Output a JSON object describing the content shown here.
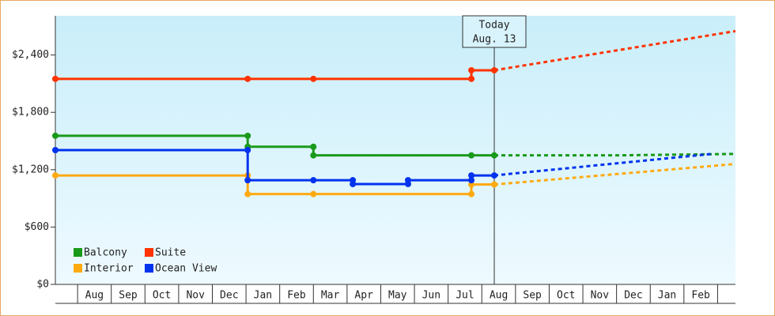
{
  "chart_data": {
    "type": "line",
    "xlim": [
      -0.66,
      19.53
    ],
    "xticks": [
      {
        "value": 0.5,
        "label": "Aug"
      },
      {
        "value": 1.5,
        "label": "Sep"
      },
      {
        "value": 2.5,
        "label": "Oct"
      },
      {
        "value": 3.5,
        "label": "Nov"
      },
      {
        "value": 4.5,
        "label": "Dec"
      },
      {
        "value": 5.5,
        "label": "Jan"
      },
      {
        "value": 6.5,
        "label": "Feb"
      },
      {
        "value": 7.5,
        "label": "Mar"
      },
      {
        "value": 8.5,
        "label": "Apr"
      },
      {
        "value": 9.5,
        "label": "May"
      },
      {
        "value": 10.5,
        "label": "Jun"
      },
      {
        "value": 11.5,
        "label": "Jul"
      },
      {
        "value": 12.5,
        "label": "Aug"
      },
      {
        "value": 13.5,
        "label": "Sep"
      },
      {
        "value": 14.5,
        "label": "Oct"
      },
      {
        "value": 15.5,
        "label": "Nov"
      },
      {
        "value": 16.5,
        "label": "Dec"
      },
      {
        "value": 17.5,
        "label": "Jan"
      },
      {
        "value": 18.5,
        "label": "Feb"
      }
    ],
    "ylim": [
      0,
      2810
    ],
    "yticks": [
      {
        "value": 0,
        "label": "$0"
      },
      {
        "value": 600,
        "label": "$600"
      },
      {
        "value": 1200,
        "label": "$1,200"
      },
      {
        "value": 1800,
        "label": "$1,800"
      },
      {
        "value": 2400,
        "label": "$2,400"
      }
    ],
    "today": {
      "x": 12.37,
      "label": "Today",
      "date": "Aug. 13"
    },
    "series": [
      {
        "name": "Balcony",
        "color": "#1a9a1a",
        "x": [
          -0.66,
          5.05,
          5.05,
          7.0,
          7.0,
          11.69,
          12.37
        ],
        "values": [
          1555,
          1555,
          1440,
          1440,
          1350,
          1350,
          1350
        ],
        "forecast": {
          "x": [
            12.37,
            16.0,
            19.53
          ],
          "values": [
            1350,
            1350,
            1365
          ]
        }
      },
      {
        "name": "Suite",
        "color": "#ff3300",
        "x": [
          -0.66,
          5.05,
          7.0,
          11.69,
          11.69,
          12.37
        ],
        "values": [
          2150,
          2150,
          2150,
          2150,
          2240,
          2240
        ],
        "forecast": {
          "x": [
            12.37,
            19.53
          ],
          "values": [
            2240,
            2650
          ]
        }
      },
      {
        "name": "Interior",
        "color": "#ffaa11",
        "x": [
          -0.66,
          5.05,
          5.05,
          7.0,
          11.69,
          11.69,
          12.37
        ],
        "values": [
          1140,
          1140,
          945,
          945,
          945,
          1045,
          1045
        ],
        "forecast": {
          "x": [
            12.37,
            19.53
          ],
          "values": [
            1045,
            1260
          ]
        }
      },
      {
        "name": "Ocean View",
        "color": "#0033ee",
        "x": [
          -0.66,
          5.05,
          5.05,
          7.0,
          8.17,
          8.17,
          9.81,
          9.81,
          11.69,
          11.69,
          12.37
        ],
        "values": [
          1405,
          1405,
          1090,
          1090,
          1090,
          1050,
          1050,
          1090,
          1090,
          1140,
          1140
        ],
        "forecast": {
          "x": [
            12.37,
            18.83
          ],
          "values": [
            1140,
            1365
          ]
        }
      }
    ]
  }
}
